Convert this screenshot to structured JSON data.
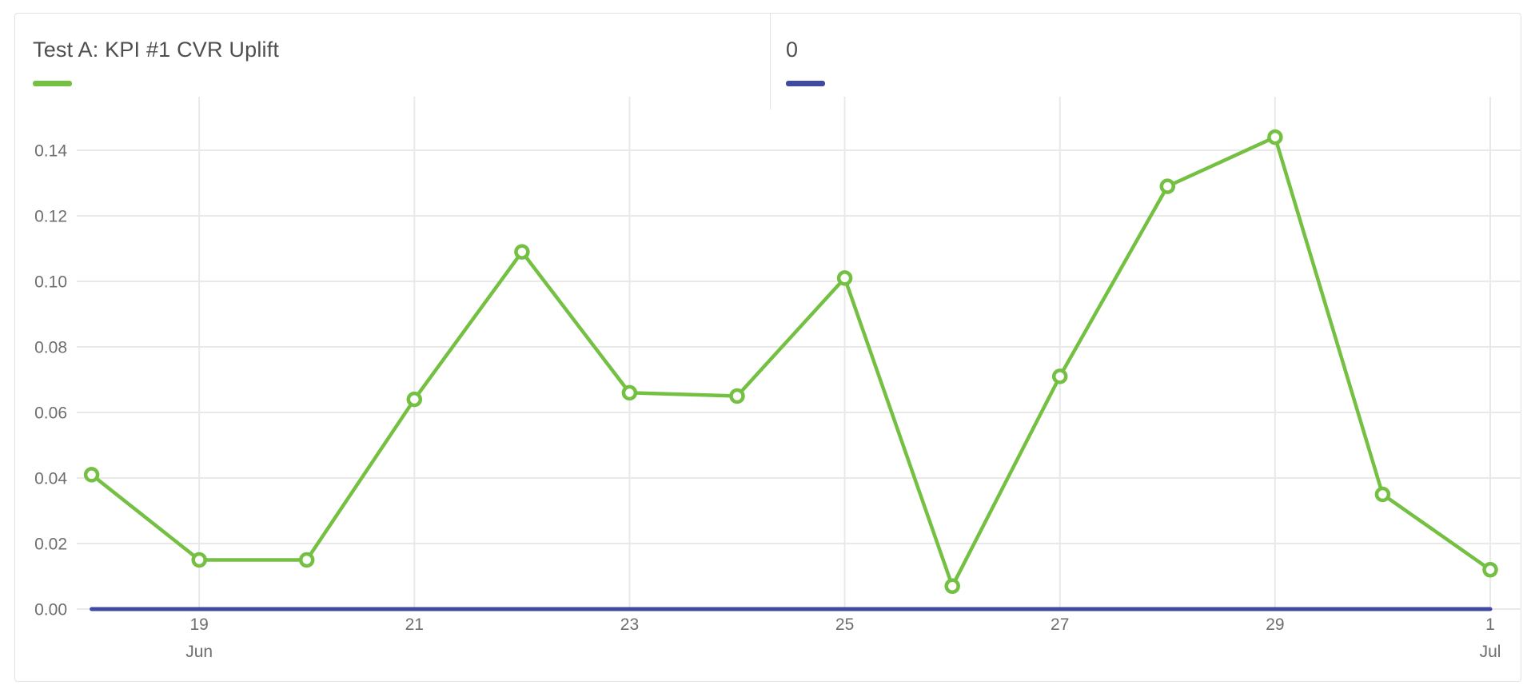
{
  "card": {
    "title": "Test A: KPI #1 CVR Uplift"
  },
  "legend": {
    "items": [
      {
        "label": "Test A: KPI #1 CVR Uplift",
        "color": "#74C042"
      },
      {
        "label": "0",
        "color": "#3F4AA0"
      }
    ]
  },
  "chart_data": {
    "type": "line",
    "x": [
      "Jun 18",
      "Jun 19",
      "Jun 20",
      "Jun 21",
      "Jun 22",
      "Jun 23",
      "Jun 24",
      "Jun 25",
      "Jun 26",
      "Jun 27",
      "Jun 28",
      "Jun 29",
      "Jun 30",
      "Jul 1"
    ],
    "series": [
      {
        "name": "Test A: KPI #1 CVR Uplift",
        "color": "#74C042",
        "markers": true,
        "values": [
          0.041,
          0.015,
          0.015,
          0.064,
          0.109,
          0.066,
          0.065,
          0.101,
          0.007,
          0.071,
          0.129,
          0.144,
          0.035,
          0.012
        ]
      },
      {
        "name": "0",
        "color": "#3F4AA0",
        "markers": false,
        "values": [
          0,
          0,
          0,
          0,
          0,
          0,
          0,
          0,
          0,
          0,
          0,
          0,
          0,
          0
        ]
      }
    ],
    "title": "Test A: KPI #1 CVR Uplift",
    "xlabel": "",
    "ylabel": "",
    "ylim": [
      0,
      0.152
    ],
    "grid": true,
    "legend_position": "top",
    "y_ticks": [
      0.0,
      0.02,
      0.04,
      0.06,
      0.08,
      0.1,
      0.12,
      0.14
    ],
    "y_tick_labels": [
      "0.00",
      "0.02",
      "0.04",
      "0.06",
      "0.08",
      "0.10",
      "0.12",
      "0.14"
    ],
    "x_ticks": [
      {
        "index": 1,
        "label": "19",
        "sub": "Jun"
      },
      {
        "index": 3,
        "label": "21"
      },
      {
        "index": 5,
        "label": "23"
      },
      {
        "index": 7,
        "label": "25"
      },
      {
        "index": 9,
        "label": "27"
      },
      {
        "index": 11,
        "label": "29"
      },
      {
        "index": 13,
        "label": "1",
        "sub": "Jul"
      }
    ]
  },
  "colors": {
    "grid": "#e9e9e9",
    "axis_text": "#6e6e6e",
    "title_text": "#4f4f4f",
    "card_border": "#e2e2e2"
  }
}
